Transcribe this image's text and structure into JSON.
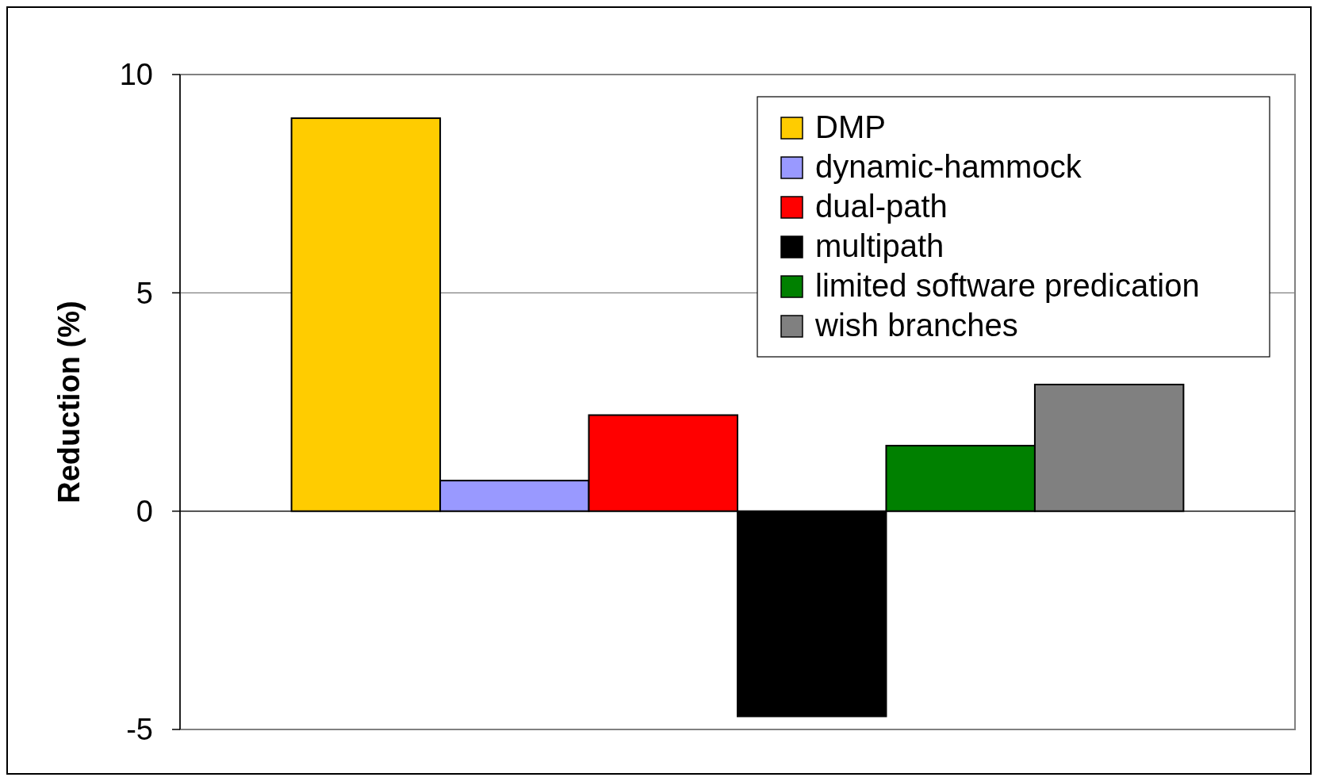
{
  "chart_data": {
    "type": "bar",
    "ylabel": "Reduction (%)",
    "categories": [
      null
    ],
    "series": [
      {
        "name": "DMP",
        "color": "#ffcc00",
        "values": [
          9.0
        ]
      },
      {
        "name": "dynamic-hammock",
        "color": "#9999ff",
        "values": [
          0.7
        ]
      },
      {
        "name": "dual-path",
        "color": "#ff0000",
        "values": [
          2.2
        ]
      },
      {
        "name": "multipath",
        "color": "#000000",
        "values": [
          -4.7
        ]
      },
      {
        "name": "limited software predication",
        "color": "#008000",
        "values": [
          1.5
        ]
      },
      {
        "name": "wish branches",
        "color": "#808080",
        "values": [
          2.9
        ]
      }
    ],
    "ylim": [
      -5,
      10
    ],
    "yticks": [
      -5,
      0,
      5,
      10
    ],
    "grid": "y",
    "legend": "top right"
  }
}
